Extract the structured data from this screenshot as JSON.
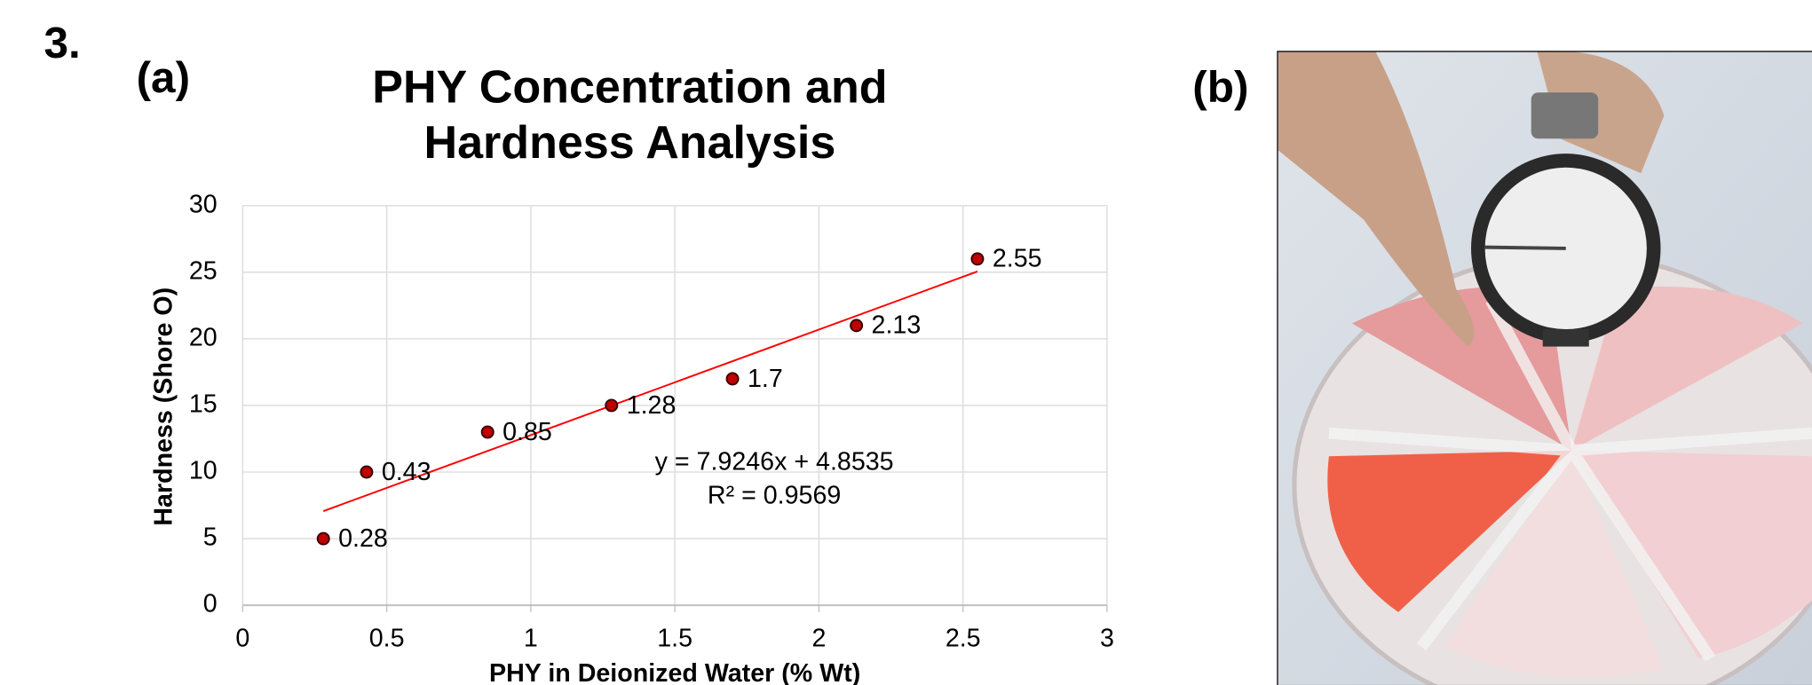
{
  "figure_number": "3.",
  "panel_a_label": "(a)",
  "panel_b_label": "(b)",
  "chart_data": {
    "type": "scatter",
    "title": "PHY Concentration and Hardness Analysis",
    "x_label": "PHY in Deionized Water (% Wt)",
    "y_label": "Hardness (Shore O)",
    "series": [
      {
        "color": "#c00000",
        "x": [
          0.28,
          0.43,
          0.85,
          1.28,
          1.7,
          2.13,
          2.55
        ],
        "values": [
          5,
          10,
          13,
          15,
          17,
          21,
          26
        ]
      }
    ],
    "xlim": [
      0,
      3
    ],
    "xticks": [
      0,
      0.5,
      1,
      1.5,
      2,
      2.5,
      3
    ],
    "ylim": [
      0,
      30
    ],
    "yticks": [
      0,
      5,
      10,
      15,
      20,
      25,
      30
    ],
    "grid": true,
    "trendline": {
      "color": "#ff0000",
      "equation": "y = 7.9246x + 4.8535",
      "r_squared": "R² = 0.9569"
    }
  }
}
